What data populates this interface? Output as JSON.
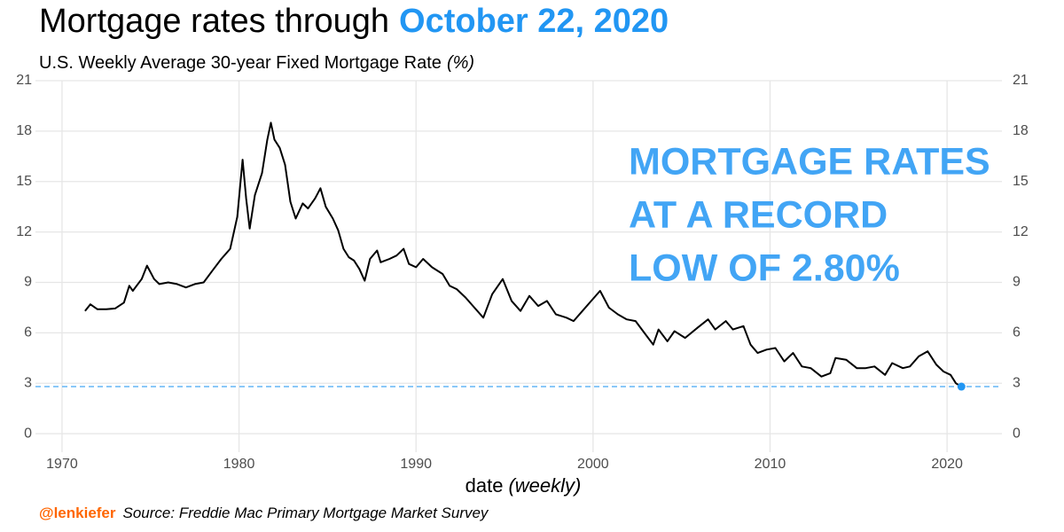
{
  "chart_data": {
    "type": "line",
    "title": "Mortgage rates through",
    "title_highlight": "October 22, 2020",
    "title_highlight_color": "#2196f3",
    "subtitle": "U.S. Weekly Average 30-year Fixed Mortgage Rate",
    "subtitle_unit": "(%)",
    "x_label": "date",
    "x_label_note": "(weekly)",
    "annotation": [
      "MORTGAGE RATES",
      "AT A RECORD",
      "LOW OF 2.80%"
    ],
    "annotation_color": "#42a5f5",
    "credit": "@lenkiefer",
    "credit_color": "#ff6600",
    "source": "Source: Freddie Mac Primary Mortgage Market Survey",
    "x": [
      1971.3,
      1971.6,
      1972.0,
      1972.5,
      1973.0,
      1973.5,
      1973.8,
      1974.0,
      1974.5,
      1974.8,
      1975.2,
      1975.5,
      1976.0,
      1976.5,
      1977.0,
      1977.5,
      1978.0,
      1978.5,
      1979.0,
      1979.5,
      1979.9,
      1980.2,
      1980.4,
      1980.6,
      1980.9,
      1981.3,
      1981.6,
      1981.8,
      1982.0,
      1982.3,
      1982.6,
      1982.9,
      1983.2,
      1983.6,
      1983.9,
      1984.3,
      1984.6,
      1984.9,
      1985.3,
      1985.6,
      1985.9,
      1986.2,
      1986.5,
      1986.8,
      1987.1,
      1987.4,
      1987.8,
      1988.0,
      1988.5,
      1988.9,
      1989.3,
      1989.6,
      1990.0,
      1990.4,
      1990.9,
      1991.5,
      1991.9,
      1992.3,
      1992.8,
      1993.3,
      1993.8,
      1994.3,
      1994.9,
      1995.4,
      1995.9,
      1996.4,
      1996.9,
      1997.4,
      1997.9,
      1998.5,
      1998.9,
      1999.4,
      1999.9,
      2000.4,
      2000.9,
      2001.4,
      2001.9,
      2002.4,
      2002.9,
      2003.4,
      2003.7,
      2004.2,
      2004.6,
      2005.2,
      2005.9,
      2006.5,
      2006.9,
      2007.5,
      2007.9,
      2008.5,
      2008.9,
      2009.3,
      2009.8,
      2010.3,
      2010.8,
      2011.3,
      2011.8,
      2012.3,
      2012.9,
      2013.4,
      2013.7,
      2014.3,
      2014.9,
      2015.4,
      2015.9,
      2016.5,
      2016.9,
      2017.5,
      2017.9,
      2018.4,
      2018.9,
      2019.4,
      2019.8,
      2020.2,
      2020.5,
      2020.81
    ],
    "series": [
      {
        "color": "#000000",
        "values": [
          7.3,
          7.7,
          7.4,
          7.4,
          7.45,
          7.8,
          8.8,
          8.5,
          9.2,
          10.0,
          9.2,
          8.9,
          9.0,
          8.9,
          8.7,
          8.9,
          9.0,
          9.7,
          10.4,
          11.0,
          12.9,
          16.3,
          14.0,
          12.2,
          14.2,
          15.5,
          17.5,
          18.5,
          17.5,
          17.0,
          16.0,
          13.8,
          12.8,
          13.7,
          13.4,
          14.0,
          14.6,
          13.5,
          12.8,
          12.1,
          11.0,
          10.5,
          10.3,
          9.8,
          9.1,
          10.4,
          10.9,
          10.2,
          10.4,
          10.6,
          11.0,
          10.1,
          9.9,
          10.4,
          9.9,
          9.5,
          8.8,
          8.6,
          8.1,
          7.5,
          6.9,
          8.3,
          9.2,
          7.9,
          7.3,
          8.2,
          7.6,
          7.9,
          7.1,
          6.9,
          6.7,
          7.3,
          7.9,
          8.5,
          7.5,
          7.1,
          6.8,
          6.7,
          6.0,
          5.3,
          6.2,
          5.5,
          6.1,
          5.7,
          6.3,
          6.8,
          6.2,
          6.7,
          6.2,
          6.4,
          5.3,
          4.8,
          5.0,
          5.1,
          4.3,
          4.8,
          4.0,
          3.9,
          3.4,
          3.6,
          4.5,
          4.4,
          3.9,
          3.9,
          4.0,
          3.5,
          4.2,
          3.9,
          4.0,
          4.6,
          4.9,
          4.1,
          3.7,
          3.5,
          3.0,
          2.8
        ]
      }
    ],
    "latest": {
      "x": 2020.81,
      "value": 2.8,
      "color": "#2196f3"
    },
    "reference_line": {
      "value": 2.8,
      "color": "#64b5f6"
    },
    "xlim": [
      1968.5,
      2023.1
    ],
    "ylim": [
      -1.1,
      21
    ],
    "xticks": [
      1970,
      1980,
      1990,
      2000,
      2010,
      2020
    ],
    "yticks": [
      0,
      3,
      6,
      9,
      12,
      15,
      18,
      21
    ],
    "grid": true
  }
}
